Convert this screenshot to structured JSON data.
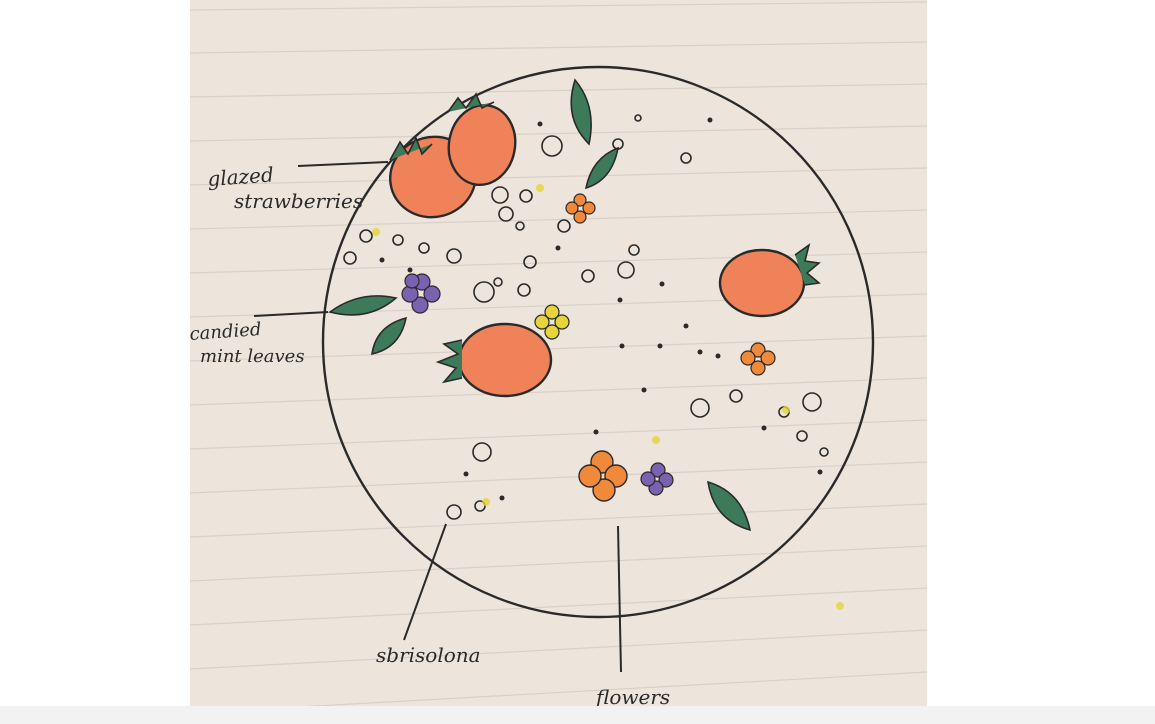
{
  "image": {
    "labels": {
      "glazed_line1": "glazed",
      "glazed_line2": "strawberries",
      "mint_line1": "candied",
      "mint_line2": "mint leaves",
      "sbrisolona": "sbrisolona",
      "flowers": "flowers"
    },
    "colors": {
      "paper": "#ede5dc",
      "ruled_line": "#d8d0c8",
      "ink": "#2a2a2a",
      "strawberry": "#f0825a",
      "leaf": "#3d7a5a",
      "flower_orange": "#f08a3a",
      "flower_purple": "#7a62b0",
      "flower_yellow": "#e6d43a"
    }
  }
}
